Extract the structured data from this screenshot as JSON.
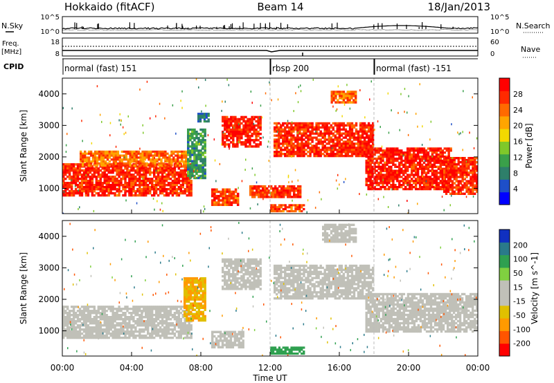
{
  "header": {
    "site": "Hokkaido (fitACF)",
    "beam": "Beam 14",
    "date": "18/Jan/2013"
  },
  "colors": {
    "scale_power": [
      "#0000ff",
      "#1e4fc8",
      "#2e7f6a",
      "#3aa04a",
      "#7fc82a",
      "#f2d800",
      "#ffa500",
      "#ff6a00",
      "#ff2a00",
      "#ff0000"
    ],
    "scale_velocity": [
      "#ff0000",
      "#ff5500",
      "#ff9a00",
      "#e0c000",
      "#c0c0b8",
      "#c0c0b8",
      "#80d040",
      "#2fa050",
      "#2a7a8a",
      "#1030c0"
    ],
    "ground_scatter": "#c0c0b8"
  },
  "chart_data": [
    {
      "type": "line",
      "panel": "noise",
      "ylabel": "N.Sky",
      "ylabel_right": "N.Search",
      "ytick_labels_left": [
        "10^5",
        "10^0"
      ],
      "ytick_labels_right": [
        "10^5",
        "10^0"
      ]
    },
    {
      "type": "line",
      "panel": "frequency",
      "ylabel": "Freq.",
      "ylabel_unit": "[MHz]",
      "ylabel_right": "Nave",
      "ytick_labels_left": [
        "18",
        "8"
      ],
      "ytick_labels_right": [
        "60",
        "0"
      ]
    },
    {
      "type": "table",
      "panel": "cpid",
      "label": "CPID",
      "segments": [
        {
          "start_hour": 0,
          "end_hour": 12,
          "text": "normal (fast) 151"
        },
        {
          "start_hour": 12,
          "end_hour": 18,
          "text": "rbsp 200"
        },
        {
          "start_hour": 18,
          "end_hour": 24,
          "text": "normal (fast) -151"
        }
      ]
    },
    {
      "type": "heatmap",
      "panel": "power",
      "ylabel": "Slant Range [km]",
      "xlim": [
        0,
        24
      ],
      "ylim": [
        200,
        4500
      ],
      "yticks": [
        1000,
        2000,
        3000,
        4000
      ],
      "ytick_labels": [
        "1000",
        "2000",
        "3000",
        "4000"
      ],
      "colorbar_label": "Power [dB]",
      "colorbar_ticks": [
        4,
        8,
        12,
        16,
        20,
        24,
        28
      ],
      "colorbar_tick_labels": [
        "4",
        "8",
        "12",
        "16",
        "20",
        "24",
        "28"
      ],
      "colorbar_range": [
        0,
        32
      ],
      "echo_bands": [
        {
          "t0": 0,
          "t1": 7.5,
          "r0": 750,
          "r1": 1800,
          "value": 28
        },
        {
          "t0": 1,
          "t1": 7.2,
          "r0": 1700,
          "r1": 2200,
          "value": 24
        },
        {
          "t0": 7.2,
          "t1": 8.3,
          "r0": 1300,
          "r1": 2900,
          "value": 10
        },
        {
          "t0": 7.8,
          "t1": 8.5,
          "r0": 3100,
          "r1": 3400,
          "value": 8
        },
        {
          "t0": 8.6,
          "t1": 10.2,
          "r0": 450,
          "r1": 1000,
          "value": 26
        },
        {
          "t0": 9.2,
          "t1": 11.5,
          "r0": 2300,
          "r1": 3300,
          "value": 29
        },
        {
          "t0": 10.8,
          "t1": 13.8,
          "r0": 700,
          "r1": 1100,
          "value": 27
        },
        {
          "t0": 12,
          "t1": 14,
          "r0": 250,
          "r1": 500,
          "value": 26
        },
        {
          "t0": 12.2,
          "t1": 18,
          "r0": 2000,
          "r1": 3100,
          "value": 28
        },
        {
          "t0": 15.5,
          "t1": 17,
          "r0": 3700,
          "r1": 4100,
          "value": 24
        },
        {
          "t0": 17.5,
          "t1": 22.5,
          "r0": 950,
          "r1": 2300,
          "value": 29
        },
        {
          "t0": 22,
          "t1": 24,
          "r0": 800,
          "r1": 2000,
          "value": 28
        }
      ]
    },
    {
      "type": "heatmap",
      "panel": "velocity",
      "ylabel": "Slant Range [km]",
      "xlabel": "Time UT",
      "xlim": [
        0,
        24
      ],
      "ylim": [
        200,
        4500
      ],
      "xticks": [
        0,
        4,
        8,
        12,
        16,
        20,
        24
      ],
      "xtick_labels": [
        "00:00",
        "04:00",
        "08:00",
        "12:00",
        "16:00",
        "20:00",
        "00:00"
      ],
      "yticks": [
        1000,
        2000,
        3000,
        4000
      ],
      "ytick_labels": [
        "1000",
        "2000",
        "3000",
        "4000"
      ],
      "colorbar_label": "Velocity [m s^-1]",
      "colorbar_ticks": [
        -200,
        -100,
        -50,
        -15,
        15,
        50,
        100,
        200
      ],
      "colorbar_tick_labels": [
        "-200",
        "-100",
        "-50",
        "-15",
        "15",
        "50",
        "100",
        "200"
      ],
      "echo_bands": [
        {
          "t0": 0,
          "t1": 7.5,
          "r0": 750,
          "r1": 1800,
          "value": 0
        },
        {
          "t0": 7,
          "t1": 8.3,
          "r0": 1300,
          "r1": 2700,
          "value": -30
        },
        {
          "t0": 8.6,
          "t1": 10.5,
          "r0": 450,
          "r1": 1000,
          "value": 0
        },
        {
          "t0": 9.2,
          "t1": 11.5,
          "r0": 2300,
          "r1": 3300,
          "value": 0
        },
        {
          "t0": 12,
          "t1": 14,
          "r0": 250,
          "r1": 500,
          "value": 60
        },
        {
          "t0": 12.2,
          "t1": 18,
          "r0": 2000,
          "r1": 3100,
          "value": 0
        },
        {
          "t0": 15,
          "t1": 17,
          "r0": 3800,
          "r1": 4400,
          "value": 0
        },
        {
          "t0": 17.5,
          "t1": 24,
          "r0": 950,
          "r1": 2200,
          "value": 0
        }
      ]
    }
  ]
}
